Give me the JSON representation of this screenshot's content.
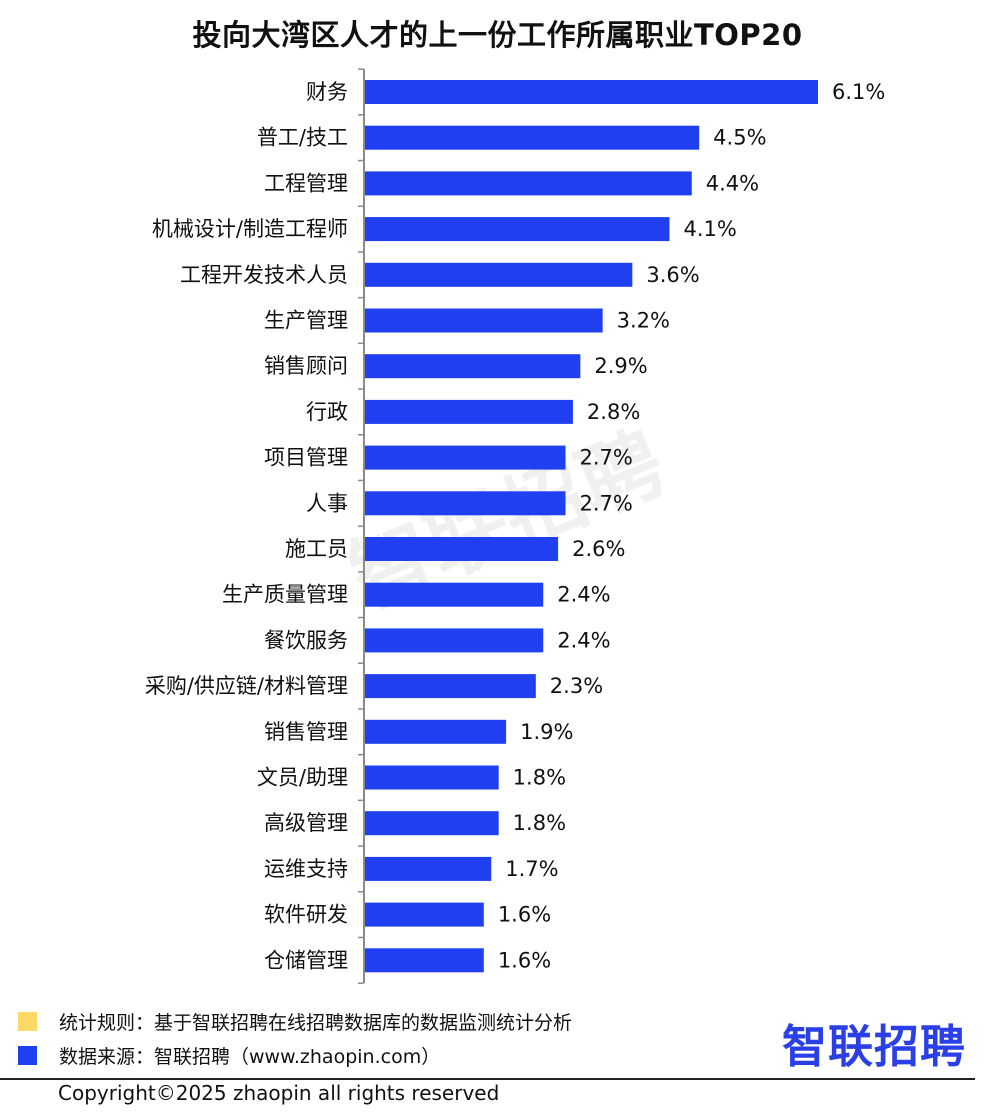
{
  "title": "投向大湾区人才的上一份工作所属职业TOP20",
  "watermark": "智联招聘",
  "colors": {
    "bar": "#1f3ff0",
    "legend_rule": "#ffd966",
    "legend_source": "#1f3ff0",
    "logo": "#2a3fe6"
  },
  "chart_data": {
    "type": "bar",
    "orientation": "horizontal",
    "title": "投向大湾区人才的上一份工作所属职业TOP20",
    "categories": [
      "财务",
      "普工/技工",
      "工程管理",
      "机械设计/制造工程师",
      "工程开发技术人员",
      "生产管理",
      "销售顾问",
      "行政",
      "项目管理",
      "人事",
      "施工员",
      "生产质量管理",
      "餐饮服务",
      "采购/供应链/材料管理",
      "销售管理",
      "文员/助理",
      "高级管理",
      "运维支持",
      "软件研发",
      "仓储管理"
    ],
    "values": [
      6.1,
      4.5,
      4.4,
      4.1,
      3.6,
      3.2,
      2.9,
      2.8,
      2.7,
      2.7,
      2.6,
      2.4,
      2.4,
      2.3,
      1.9,
      1.8,
      1.8,
      1.7,
      1.6,
      1.6
    ],
    "value_labels": [
      "6.1%",
      "4.5%",
      "4.4%",
      "4.1%",
      "3.6%",
      "3.2%",
      "2.9%",
      "2.8%",
      "2.7%",
      "2.7%",
      "2.6%",
      "2.4%",
      "2.4%",
      "2.3%",
      "1.9%",
      "1.8%",
      "1.8%",
      "1.7%",
      "1.6%",
      "1.6%"
    ],
    "unit": "%",
    "grid": false,
    "legend": "none"
  },
  "footer": {
    "rule_text": "统计规则：基于智联招聘在线招聘数据库的数据监测统计分析",
    "source_text": "数据来源：智联招聘（www.zhaopin.com）",
    "logo_text": "智联招聘",
    "copyright": "Copyright©2025 zhaopin all rights reserved"
  }
}
